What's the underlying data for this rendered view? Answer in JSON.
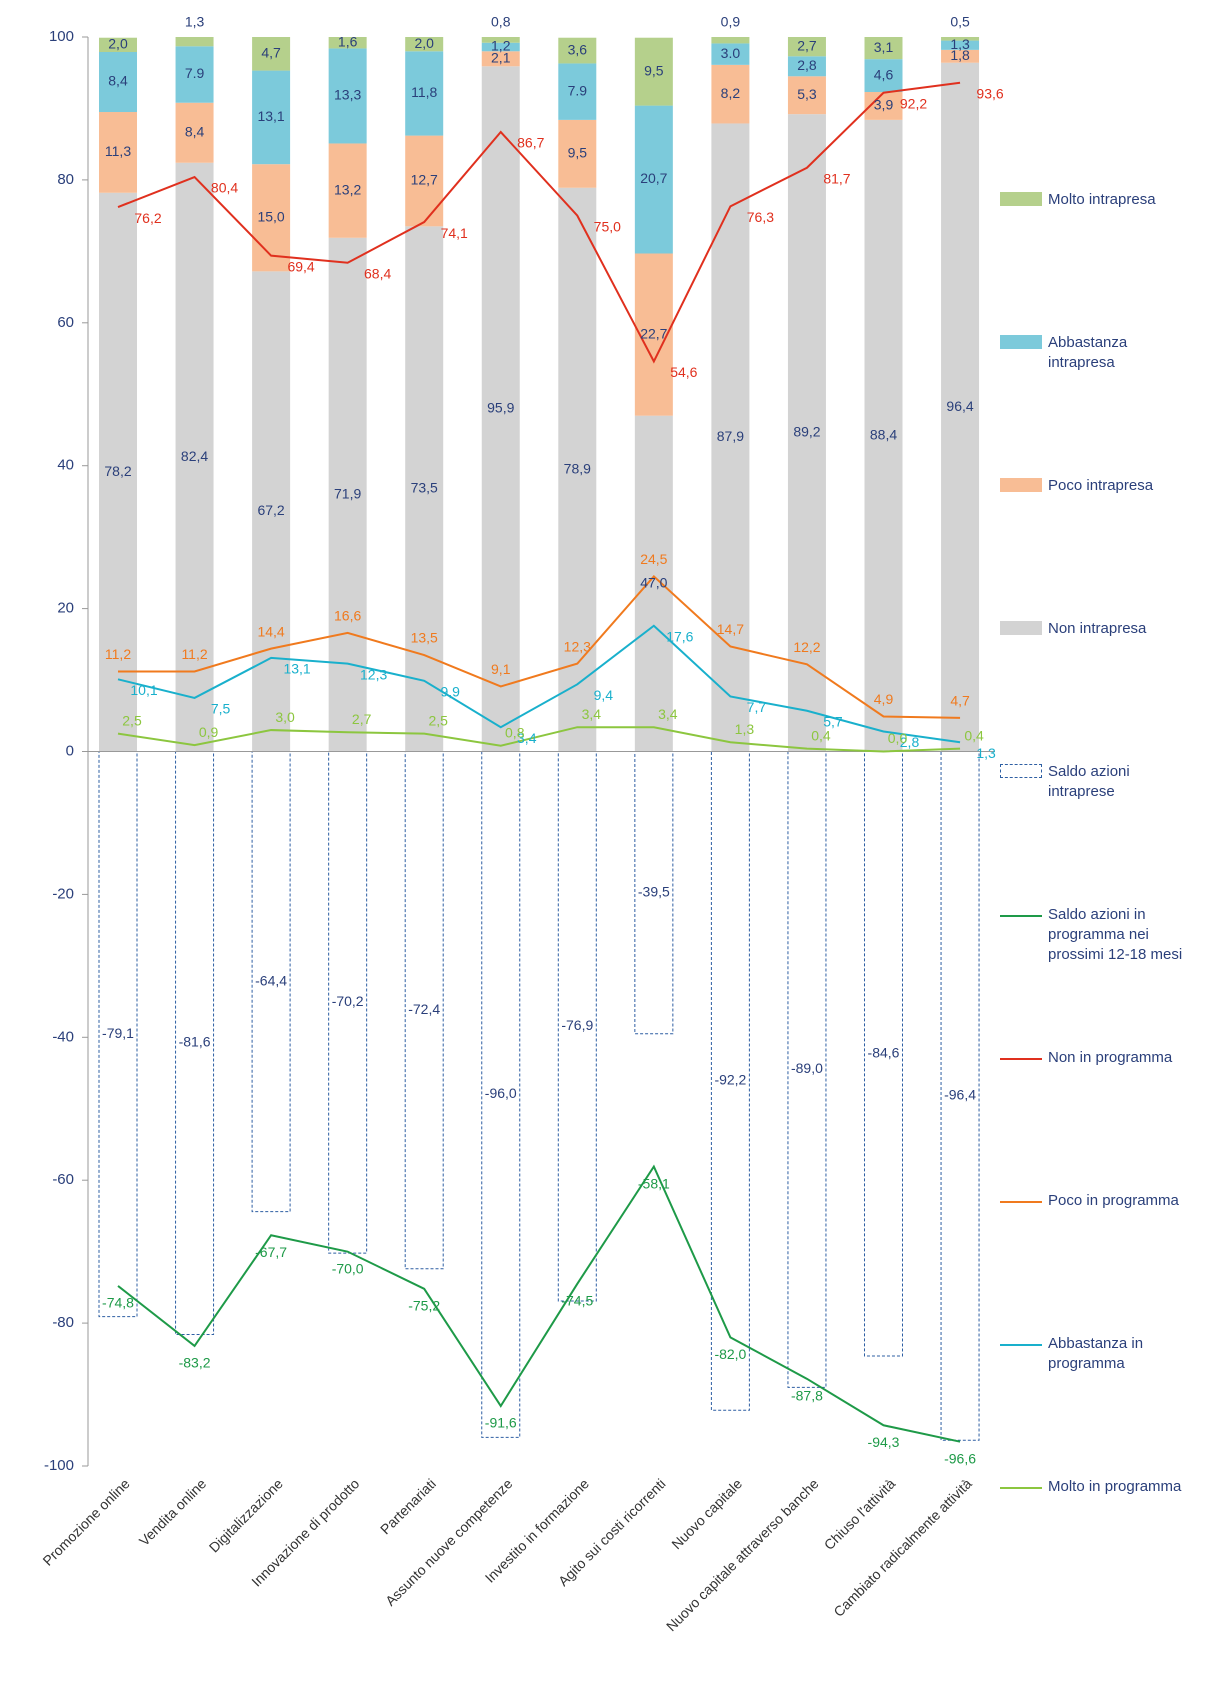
{
  "chart_data": {
    "type": "bar",
    "categories": [
      "Promozione online",
      "Vendita online",
      "Digitalizzazione",
      "Innovazione di prodotto",
      "Partenariati",
      "Assunto nuove competenze",
      "Investito in formazione",
      "Agito sui costi ricorrenti",
      "Nuovo capitale",
      "Nuovo capitale attraverso banche",
      "Chiuso l'attività",
      "Cambiato radicalmente attività"
    ],
    "ylim": [
      -100,
      100
    ],
    "yticks": [
      100,
      80,
      60,
      40,
      20,
      0,
      -20,
      -40,
      -60,
      -80,
      -100
    ],
    "series": [
      {
        "name": "Molto intrapresa",
        "kind": "stacked-bar",
        "color": "#b5d08c",
        "values": [
          2.0,
          1.3,
          4.7,
          1.6,
          2.0,
          0.8,
          3.6,
          9.5,
          0.9,
          2.7,
          3.1,
          0.5
        ],
        "value_labels": [
          "2,0",
          "1,3",
          "4,7",
          "1,6",
          "2,0",
          "0,8",
          "3,6",
          "9,5",
          "0,9",
          "2,7",
          "3,1",
          "0,5"
        ]
      },
      {
        "name": "Abbastanza intrapresa",
        "kind": "stacked-bar",
        "color": "#7ccadb",
        "values": [
          8.4,
          7.9,
          13.1,
          13.3,
          11.8,
          1.2,
          7.9,
          20.7,
          3.0,
          2.8,
          4.6,
          1.3
        ],
        "value_labels": [
          "8,4",
          "7.9",
          "13,1",
          "13,3",
          "11,8",
          "1,2",
          "7.9",
          "20,7",
          "3.0",
          "2,8",
          "4,6",
          "1,3"
        ]
      },
      {
        "name": "Poco intrapresa",
        "kind": "stacked-bar",
        "color": "#f8bd95",
        "values": [
          11.3,
          8.4,
          15.0,
          13.2,
          12.7,
          2.1,
          9.5,
          22.7,
          8.2,
          5.3,
          3.9,
          1.8
        ],
        "value_labels": [
          "11,3",
          "8,4",
          "15,0",
          "13,2",
          "12,7",
          "2,1",
          "9,5",
          "22,7",
          "8,2",
          "5,3",
          "3,9",
          "1,8"
        ]
      },
      {
        "name": "Non intrapresa",
        "kind": "stacked-bar",
        "color": "#d3d3d3",
        "values": [
          78.2,
          82.4,
          67.2,
          71.9,
          73.5,
          95.9,
          78.9,
          47.0,
          87.9,
          89.2,
          88.4,
          96.4
        ],
        "value_labels": [
          "78,2",
          "82,4",
          "67,2",
          "71,9",
          "73,5",
          "95,9",
          "78,9",
          "47,0",
          "87,9",
          "89,2",
          "88,4",
          "96,4"
        ]
      },
      {
        "name": "Saldo azioni intraprese",
        "kind": "bar",
        "color": "#2e5fa3",
        "values": [
          -79.1,
          -81.6,
          -64.4,
          -70.2,
          -72.4,
          -96.0,
          -76.9,
          -39.5,
          -92.2,
          -89.0,
          -84.6,
          -96.4
        ],
        "value_labels": [
          "-79,1",
          "-81,6",
          "-64,4",
          "-70,2",
          "-72,4",
          "-96,0",
          "-76,9",
          "-39,5",
          "-92,2",
          "-89,0",
          "-84,6",
          "-96,4"
        ]
      },
      {
        "name": "Saldo azioni in programma nei prossimi 12-18 mesi",
        "kind": "line",
        "color": "#1e9a48",
        "values": [
          -74.8,
          -83.2,
          -67.7,
          -70.0,
          -75.2,
          -91.6,
          -74.5,
          -58.1,
          -82.0,
          -87.8,
          -94.3,
          -96.6
        ],
        "value_labels": [
          "-74,8",
          "-83,2",
          "-67,7",
          "-70,0",
          "-75,2",
          "-91,6",
          "-74,5",
          "-58,1",
          "-82,0",
          "-87,8",
          "-94,3",
          "-96,6"
        ]
      },
      {
        "name": "Non in programma",
        "kind": "line",
        "color": "#e0301e",
        "values": [
          76.2,
          80.4,
          69.4,
          68.4,
          74.1,
          86.7,
          75.0,
          54.6,
          76.3,
          81.7,
          92.2,
          93.6
        ],
        "value_labels": [
          "76,2",
          "80,4",
          "69,4",
          "68,4",
          "74,1",
          "86,7",
          "75,0",
          "54,6",
          "76,3",
          "81,7",
          "92,2",
          "93,6"
        ]
      },
      {
        "name": "Poco in programma",
        "kind": "line",
        "color": "#f07a1e",
        "values": [
          11.2,
          11.2,
          14.4,
          16.6,
          13.5,
          9.1,
          12.3,
          24.5,
          14.7,
          12.2,
          4.9,
          4.7
        ],
        "value_labels": [
          "11,2",
          "11,2",
          "14,4",
          "16,6",
          "13,5",
          "9,1",
          "12,3",
          "24,5",
          "14,7",
          "12,2",
          "4,9",
          "4,7"
        ]
      },
      {
        "name": "Abbastanza in programma",
        "kind": "line",
        "color": "#19b0cc",
        "values": [
          10.1,
          7.5,
          13.1,
          12.3,
          9.9,
          3.4,
          9.4,
          17.6,
          7.7,
          5.7,
          2.8,
          1.3
        ],
        "value_labels": [
          "10,1",
          "7,5",
          "13,1",
          "12,3",
          "9,9",
          "3,4",
          "9,4",
          "17,6",
          "7,7",
          "5,7",
          "2,8",
          "1,3"
        ]
      },
      {
        "name": "Molto in programma",
        "kind": "line",
        "color": "#8cc63f",
        "values": [
          2.5,
          0.9,
          3.0,
          2.7,
          2.5,
          0.8,
          3.4,
          3.4,
          1.3,
          0.4,
          0.0,
          0.4
        ],
        "value_labels": [
          "2,5",
          "0,9",
          "3,0",
          "2,7",
          "2,5",
          "0,8",
          "3,4",
          "3,4",
          "1,3",
          "0,4",
          "0,0",
          "0,4"
        ]
      }
    ]
  }
}
